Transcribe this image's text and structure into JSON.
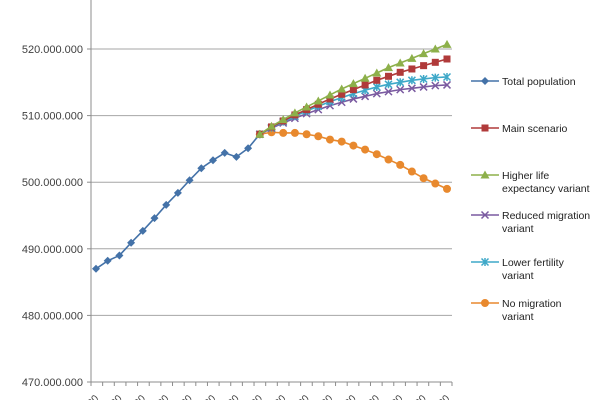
{
  "chart_data": {
    "type": "line",
    "title": "",
    "xlabel": "",
    "ylabel": "",
    "ylim": [
      470000000,
      530000000
    ],
    "y_ticks": [
      470000000,
      480000000,
      490000000,
      500000000,
      510000000,
      520000000
    ],
    "y_tick_labels": [
      "470.000.000",
      "480.000.000",
      "490.000.000",
      "500.000.000",
      "510.000.000",
      "520.000.000"
    ],
    "grid": true,
    "legend_position": "right",
    "x": [
      0,
      1,
      2,
      3,
      4,
      5,
      6,
      7,
      8,
      9,
      10,
      11,
      12,
      13,
      14,
      15,
      16,
      17,
      18,
      19,
      20,
      21,
      22,
      23,
      24,
      25,
      26,
      27,
      28,
      29,
      30
    ],
    "x_tick_labels_note": "rotated year labels, cropped at bottom edge",
    "series": [
      {
        "name": "Total population",
        "color": "#4472a8",
        "marker": "diamond",
        "start_index": 0,
        "values": [
          487.0,
          488.2,
          489.0,
          490.9,
          492.7,
          494.6,
          496.6,
          498.4,
          500.3,
          502.1,
          503.3,
          504.4,
          503.8,
          505.1,
          507.2
        ]
      },
      {
        "name": "Main scenario",
        "color": "#b03a3a",
        "marker": "square",
        "start_index": 14,
        "values": [
          507.2,
          508.3,
          509.2,
          510.1,
          510.9,
          511.7,
          512.5,
          513.2,
          513.9,
          514.6,
          515.3,
          515.9,
          516.5,
          517.0,
          517.5,
          518.0,
          518.5
        ]
      },
      {
        "name": "Higher life expectancy variant",
        "color": "#8db04a",
        "marker": "triangle",
        "start_index": 14,
        "values": [
          507.2,
          508.4,
          509.4,
          510.4,
          511.3,
          512.2,
          513.1,
          514.0,
          514.8,
          515.6,
          516.4,
          517.2,
          517.9,
          518.6,
          519.3,
          520.0,
          520.7
        ]
      },
      {
        "name": "Reduced migration variant",
        "color": "#7a5aa0",
        "marker": "x",
        "start_index": 14,
        "values": [
          507.2,
          508.1,
          508.9,
          509.6,
          510.3,
          510.9,
          511.5,
          512.0,
          512.5,
          512.9,
          513.3,
          513.6,
          513.9,
          514.1,
          514.3,
          514.5,
          514.6
        ]
      },
      {
        "name": "Lower fertility variant",
        "color": "#3ea8c8",
        "marker": "star",
        "start_index": 14,
        "values": [
          507.2,
          508.2,
          509.1,
          509.9,
          510.7,
          511.4,
          512.1,
          512.7,
          513.3,
          513.8,
          514.3,
          514.7,
          515.0,
          515.3,
          515.5,
          515.7,
          515.8
        ]
      },
      {
        "name": "No migration variant",
        "color": "#e8892e",
        "marker": "circle",
        "start_index": 14,
        "values": [
          507.2,
          507.5,
          507.4,
          507.4,
          507.2,
          506.9,
          506.4,
          506.1,
          505.5,
          504.9,
          504.2,
          503.4,
          502.6,
          501.6,
          500.6,
          499.8,
          499.0
        ]
      }
    ],
    "units_note": "values in millions of persons"
  },
  "legend": {
    "items": [
      {
        "lines": [
          "Total population"
        ]
      },
      {
        "lines": [
          "Main scenario"
        ]
      },
      {
        "lines": [
          "Higher life",
          "expectancy variant"
        ]
      },
      {
        "lines": [
          "Reduced migration",
          "variant"
        ]
      },
      {
        "lines": [
          "Lower fertility",
          "variant"
        ]
      },
      {
        "lines": [
          "No migration",
          "variant"
        ]
      }
    ]
  }
}
